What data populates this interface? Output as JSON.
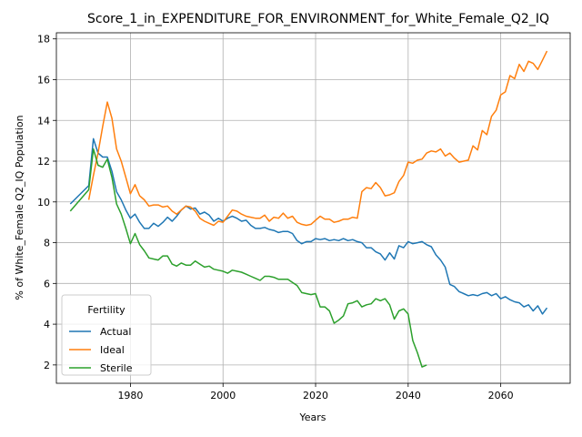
{
  "chart_data": {
    "type": "line",
    "title": "Score_1_in_EXPENDITURE_FOR_ENVIRONMENT_for_White_Female_Q2_IQ",
    "xlabel": "Years",
    "ylabel": "% of White_Female Q2_IQ Population",
    "xlim": [
      1964,
      2075
    ],
    "ylim": [
      1.1,
      18.3
    ],
    "xticks": [
      1980,
      2000,
      2020,
      2040,
      2060
    ],
    "yticks": [
      2,
      4,
      6,
      8,
      10,
      12,
      14,
      16,
      18
    ],
    "grid": true,
    "legend": {
      "title": "Fertility",
      "placement": "lower-left"
    },
    "series": [
      {
        "name": "Actual",
        "color": "#1f77b4",
        "points": [
          [
            1967,
            9.9
          ],
          [
            1971,
            10.8
          ],
          [
            1972,
            13.1
          ],
          [
            1973,
            12.4
          ],
          [
            1974,
            12.2
          ],
          [
            1975,
            12.2
          ],
          [
            1976,
            11.5
          ],
          [
            1977,
            10.5
          ],
          [
            1978,
            10.1
          ],
          [
            1979,
            9.6
          ],
          [
            1980,
            9.2
          ],
          [
            1981,
            9.4
          ],
          [
            1982,
            9.0
          ],
          [
            1983,
            8.7
          ],
          [
            1984,
            8.7
          ],
          [
            1985,
            8.95
          ],
          [
            1986,
            8.8
          ],
          [
            1987,
            9.0
          ],
          [
            1988,
            9.25
          ],
          [
            1989,
            9.05
          ],
          [
            1990,
            9.3
          ],
          [
            1991,
            9.6
          ],
          [
            1992,
            9.8
          ],
          [
            1993,
            9.65
          ],
          [
            1994,
            9.7
          ],
          [
            1995,
            9.4
          ],
          [
            1996,
            9.5
          ],
          [
            1997,
            9.35
          ],
          [
            1998,
            9.05
          ],
          [
            1999,
            9.2
          ],
          [
            2000,
            9.05
          ],
          [
            2001,
            9.2
          ],
          [
            2002,
            9.3
          ],
          [
            2003,
            9.2
          ],
          [
            2004,
            9.05
          ],
          [
            2005,
            9.1
          ],
          [
            2006,
            8.85
          ],
          [
            2007,
            8.7
          ],
          [
            2008,
            8.7
          ],
          [
            2009,
            8.75
          ],
          [
            2010,
            8.65
          ],
          [
            2011,
            8.6
          ],
          [
            2012,
            8.5
          ],
          [
            2013,
            8.55
          ],
          [
            2014,
            8.55
          ],
          [
            2015,
            8.45
          ],
          [
            2016,
            8.1
          ],
          [
            2017,
            7.95
          ],
          [
            2018,
            8.05
          ],
          [
            2019,
            8.05
          ],
          [
            2020,
            8.2
          ],
          [
            2021,
            8.15
          ],
          [
            2022,
            8.2
          ],
          [
            2023,
            8.1
          ],
          [
            2024,
            8.15
          ],
          [
            2025,
            8.1
          ],
          [
            2026,
            8.2
          ],
          [
            2027,
            8.1
          ],
          [
            2028,
            8.15
          ],
          [
            2029,
            8.05
          ],
          [
            2030,
            8.0
          ],
          [
            2031,
            7.75
          ],
          [
            2032,
            7.75
          ],
          [
            2033,
            7.55
          ],
          [
            2034,
            7.45
          ],
          [
            2035,
            7.15
          ],
          [
            2036,
            7.5
          ],
          [
            2037,
            7.2
          ],
          [
            2038,
            7.85
          ],
          [
            2039,
            7.75
          ],
          [
            2040,
            8.05
          ],
          [
            2041,
            7.95
          ],
          [
            2042,
            8.0
          ],
          [
            2043,
            8.05
          ],
          [
            2044,
            7.9
          ],
          [
            2045,
            7.8
          ],
          [
            2046,
            7.4
          ],
          [
            2047,
            7.15
          ],
          [
            2048,
            6.8
          ],
          [
            2049,
            5.95
          ],
          [
            2050,
            5.85
          ],
          [
            2051,
            5.6
          ],
          [
            2052,
            5.5
          ],
          [
            2053,
            5.4
          ],
          [
            2054,
            5.45
          ],
          [
            2055,
            5.4
          ],
          [
            2056,
            5.5
          ],
          [
            2057,
            5.55
          ],
          [
            2058,
            5.4
          ],
          [
            2059,
            5.5
          ],
          [
            2060,
            5.25
          ],
          [
            2061,
            5.35
          ],
          [
            2062,
            5.2
          ],
          [
            2063,
            5.1
          ],
          [
            2064,
            5.05
          ],
          [
            2065,
            4.85
          ],
          [
            2066,
            4.95
          ],
          [
            2067,
            4.65
          ],
          [
            2068,
            4.9
          ],
          [
            2069,
            4.5
          ],
          [
            2070,
            4.8
          ]
        ]
      },
      {
        "name": "Ideal",
        "color": "#ff7f0e",
        "points": [
          [
            1971,
            10.1
          ],
          [
            1972,
            11.3
          ],
          [
            1973,
            12.4
          ],
          [
            1974,
            13.7
          ],
          [
            1975,
            14.9
          ],
          [
            1976,
            14.1
          ],
          [
            1977,
            12.6
          ],
          [
            1978,
            12.0
          ],
          [
            1979,
            11.2
          ],
          [
            1980,
            10.4
          ],
          [
            1981,
            10.85
          ],
          [
            1982,
            10.3
          ],
          [
            1983,
            10.1
          ],
          [
            1984,
            9.8
          ],
          [
            1985,
            9.85
          ],
          [
            1986,
            9.85
          ],
          [
            1987,
            9.75
          ],
          [
            1988,
            9.8
          ],
          [
            1989,
            9.55
          ],
          [
            1990,
            9.4
          ],
          [
            1991,
            9.6
          ],
          [
            1992,
            9.8
          ],
          [
            1993,
            9.75
          ],
          [
            1994,
            9.55
          ],
          [
            1995,
            9.2
          ],
          [
            1996,
            9.05
          ],
          [
            1997,
            8.95
          ],
          [
            1998,
            8.85
          ],
          [
            1999,
            9.05
          ],
          [
            2000,
            9.0
          ],
          [
            2001,
            9.3
          ],
          [
            2002,
            9.6
          ],
          [
            2003,
            9.55
          ],
          [
            2004,
            9.4
          ],
          [
            2005,
            9.3
          ],
          [
            2006,
            9.25
          ],
          [
            2007,
            9.2
          ],
          [
            2008,
            9.2
          ],
          [
            2009,
            9.35
          ],
          [
            2010,
            9.05
          ],
          [
            2011,
            9.25
          ],
          [
            2012,
            9.2
          ],
          [
            2013,
            9.45
          ],
          [
            2014,
            9.2
          ],
          [
            2015,
            9.3
          ],
          [
            2016,
            9.0
          ],
          [
            2017,
            8.9
          ],
          [
            2018,
            8.85
          ],
          [
            2019,
            8.9
          ],
          [
            2020,
            9.1
          ],
          [
            2021,
            9.3
          ],
          [
            2022,
            9.15
          ],
          [
            2023,
            9.15
          ],
          [
            2024,
            9.0
          ],
          [
            2025,
            9.05
          ],
          [
            2026,
            9.15
          ],
          [
            2027,
            9.15
          ],
          [
            2028,
            9.25
          ],
          [
            2029,
            9.2
          ],
          [
            2030,
            10.5
          ],
          [
            2031,
            10.7
          ],
          [
            2032,
            10.65
          ],
          [
            2033,
            10.95
          ],
          [
            2034,
            10.7
          ],
          [
            2035,
            10.3
          ],
          [
            2036,
            10.35
          ],
          [
            2037,
            10.45
          ],
          [
            2038,
            11.0
          ],
          [
            2039,
            11.3
          ],
          [
            2040,
            11.95
          ],
          [
            2041,
            11.9
          ],
          [
            2042,
            12.05
          ],
          [
            2043,
            12.1
          ],
          [
            2044,
            12.4
          ],
          [
            2045,
            12.5
          ],
          [
            2046,
            12.45
          ],
          [
            2047,
            12.6
          ],
          [
            2048,
            12.25
          ],
          [
            2049,
            12.4
          ],
          [
            2050,
            12.15
          ],
          [
            2051,
            11.95
          ],
          [
            2052,
            12.0
          ],
          [
            2053,
            12.05
          ],
          [
            2054,
            12.75
          ],
          [
            2055,
            12.55
          ],
          [
            2056,
            13.5
          ],
          [
            2057,
            13.3
          ],
          [
            2058,
            14.2
          ],
          [
            2059,
            14.5
          ],
          [
            2060,
            15.25
          ],
          [
            2061,
            15.4
          ],
          [
            2062,
            16.2
          ],
          [
            2063,
            16.05
          ],
          [
            2064,
            16.75
          ],
          [
            2065,
            16.4
          ],
          [
            2066,
            16.9
          ],
          [
            2067,
            16.8
          ],
          [
            2068,
            16.5
          ],
          [
            2069,
            16.95
          ],
          [
            2070,
            17.4
          ]
        ]
      },
      {
        "name": "Sterile",
        "color": "#2ca02c",
        "points": [
          [
            1967,
            9.55
          ],
          [
            1971,
            10.6
          ],
          [
            1972,
            12.6
          ],
          [
            1973,
            11.8
          ],
          [
            1974,
            11.7
          ],
          [
            1975,
            12.1
          ],
          [
            1976,
            11.2
          ],
          [
            1977,
            9.9
          ],
          [
            1978,
            9.4
          ],
          [
            1979,
            8.7
          ],
          [
            1980,
            7.95
          ],
          [
            1981,
            8.45
          ],
          [
            1982,
            7.9
          ],
          [
            1983,
            7.6
          ],
          [
            1984,
            7.25
          ],
          [
            1985,
            7.2
          ],
          [
            1986,
            7.15
          ],
          [
            1987,
            7.35
          ],
          [
            1988,
            7.35
          ],
          [
            1989,
            6.95
          ],
          [
            1990,
            6.85
          ],
          [
            1991,
            7.0
          ],
          [
            1992,
            6.9
          ],
          [
            1993,
            6.9
          ],
          [
            1994,
            7.1
          ],
          [
            1995,
            6.95
          ],
          [
            1996,
            6.8
          ],
          [
            1997,
            6.85
          ],
          [
            1998,
            6.7
          ],
          [
            1999,
            6.65
          ],
          [
            2000,
            6.6
          ],
          [
            2001,
            6.5
          ],
          [
            2002,
            6.65
          ],
          [
            2003,
            6.6
          ],
          [
            2004,
            6.55
          ],
          [
            2005,
            6.45
          ],
          [
            2006,
            6.35
          ],
          [
            2007,
            6.25
          ],
          [
            2008,
            6.15
          ],
          [
            2009,
            6.35
          ],
          [
            2010,
            6.35
          ],
          [
            2011,
            6.3
          ],
          [
            2012,
            6.2
          ],
          [
            2013,
            6.2
          ],
          [
            2014,
            6.2
          ],
          [
            2015,
            6.05
          ],
          [
            2016,
            5.9
          ],
          [
            2017,
            5.55
          ],
          [
            2018,
            5.5
          ],
          [
            2019,
            5.45
          ],
          [
            2020,
            5.5
          ],
          [
            2021,
            4.85
          ],
          [
            2022,
            4.85
          ],
          [
            2023,
            4.65
          ],
          [
            2024,
            4.05
          ],
          [
            2025,
            4.2
          ],
          [
            2026,
            4.4
          ],
          [
            2027,
            5.0
          ],
          [
            2028,
            5.05
          ],
          [
            2029,
            5.15
          ],
          [
            2030,
            4.85
          ],
          [
            2031,
            4.95
          ],
          [
            2032,
            5.0
          ],
          [
            2033,
            5.25
          ],
          [
            2034,
            5.15
          ],
          [
            2035,
            5.25
          ],
          [
            2036,
            4.95
          ],
          [
            2037,
            4.25
          ],
          [
            2038,
            4.65
          ],
          [
            2039,
            4.75
          ],
          [
            2040,
            4.5
          ],
          [
            2041,
            3.2
          ],
          [
            2042,
            2.6
          ],
          [
            2043,
            1.9
          ],
          [
            2044,
            2.0
          ]
        ]
      }
    ]
  }
}
